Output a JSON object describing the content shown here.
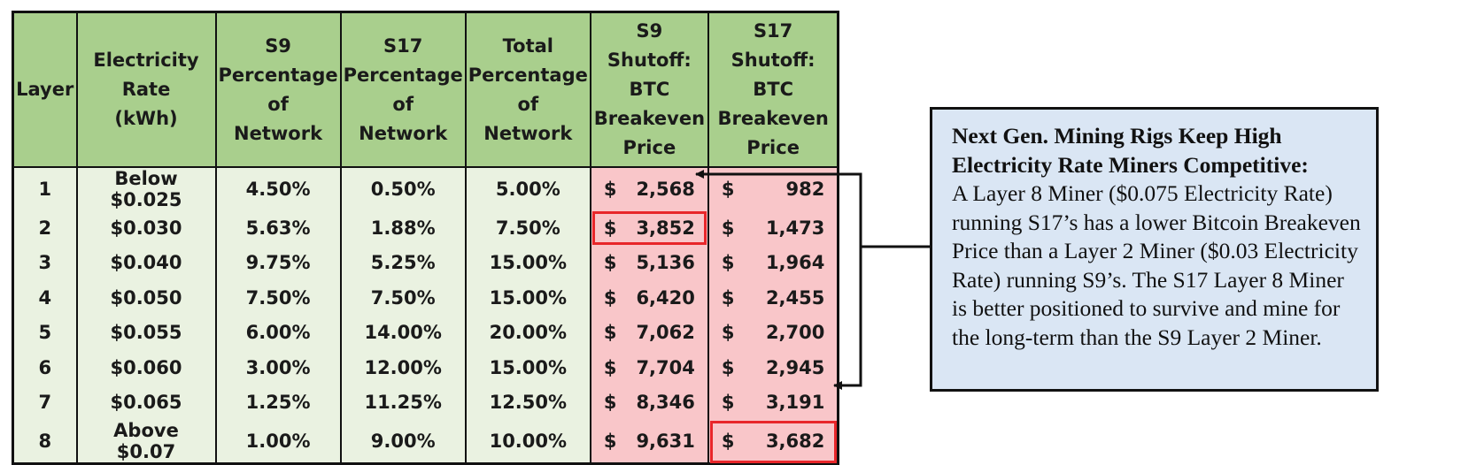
{
  "chart_data": {
    "type": "table",
    "columns": [
      "Layer",
      "Electricity Rate (kWh)",
      "S9 Percentage of Network",
      "S17 Percentage of Network",
      "Total Percentage of Network",
      "S9 Shutoff: BTC Breakeven Price",
      "S17 Shutoff: BTC Breakeven Price"
    ],
    "header_lines": [
      [
        "Layer"
      ],
      [
        "Electricity",
        "Rate",
        "(kWh)"
      ],
      [
        "S9",
        "Percentage",
        "of",
        "Network"
      ],
      [
        "S17",
        "Percentage",
        "of",
        "Network"
      ],
      [
        "Total",
        "Percentage",
        "of",
        "Network"
      ],
      [
        "S9 Shutoff:",
        "BTC",
        "Breakeven",
        "Price"
      ],
      [
        "S17 Shutoff:",
        "BTC",
        "Breakeven",
        "Price"
      ]
    ],
    "currency_symbol": "$",
    "rows": [
      {
        "layer": "1",
        "rate": "Below $0.025",
        "s9_pct": "4.50%",
        "s17_pct": "0.50%",
        "total_pct": "5.00%",
        "s9_price": "2,568",
        "s17_price": "982"
      },
      {
        "layer": "2",
        "rate": "$0.030",
        "s9_pct": "5.63%",
        "s17_pct": "1.88%",
        "total_pct": "7.50%",
        "s9_price": "3,852",
        "s17_price": "1,473"
      },
      {
        "layer": "3",
        "rate": "$0.040",
        "s9_pct": "9.75%",
        "s17_pct": "5.25%",
        "total_pct": "15.00%",
        "s9_price": "5,136",
        "s17_price": "1,964"
      },
      {
        "layer": "4",
        "rate": "$0.050",
        "s9_pct": "7.50%",
        "s17_pct": "7.50%",
        "total_pct": "15.00%",
        "s9_price": "6,420",
        "s17_price": "2,455"
      },
      {
        "layer": "5",
        "rate": "$0.055",
        "s9_pct": "6.00%",
        "s17_pct": "14.00%",
        "total_pct": "20.00%",
        "s9_price": "7,062",
        "s17_price": "2,700"
      },
      {
        "layer": "6",
        "rate": "$0.060",
        "s9_pct": "3.00%",
        "s17_pct": "12.00%",
        "total_pct": "15.00%",
        "s9_price": "7,704",
        "s17_price": "2,945"
      },
      {
        "layer": "7",
        "rate": "$0.065",
        "s9_pct": "1.25%",
        "s17_pct": "11.25%",
        "total_pct": "12.50%",
        "s9_price": "8,346",
        "s17_price": "3,191"
      },
      {
        "layer": "8",
        "rate": "Above $0.07",
        "s9_pct": "1.00%",
        "s17_pct": "9.00%",
        "total_pct": "10.00%",
        "s9_price": "9,631",
        "s17_price": "3,682"
      }
    ],
    "highlighted_cells": [
      {
        "layer": "2",
        "column": "S9 Shutoff: BTC Breakeven Price"
      },
      {
        "layer": "8",
        "column": "S17 Shutoff: BTC Breakeven Price"
      }
    ]
  },
  "callout": {
    "title": "Next Gen. Mining Rigs Keep High Electricity Rate Miners Competitive:",
    "body": "A Layer 8 Miner ($0.075 Electricity Rate) running S17’s has a lower Bitcoin Breakeven Price than a Layer 2 Miner ($0.03 Electricity Rate) running S9’s. The S17 Layer 8 Miner is better positioned to survive and mine for the long-term than the S9 Layer 2 Miner."
  },
  "colors": {
    "header_green": "#a9cf8d",
    "row_green": "#eaf2e1",
    "price_pink": "#f9c6c9",
    "highlight_red": "#e8262a",
    "callout_blue": "#dae6f4"
  }
}
